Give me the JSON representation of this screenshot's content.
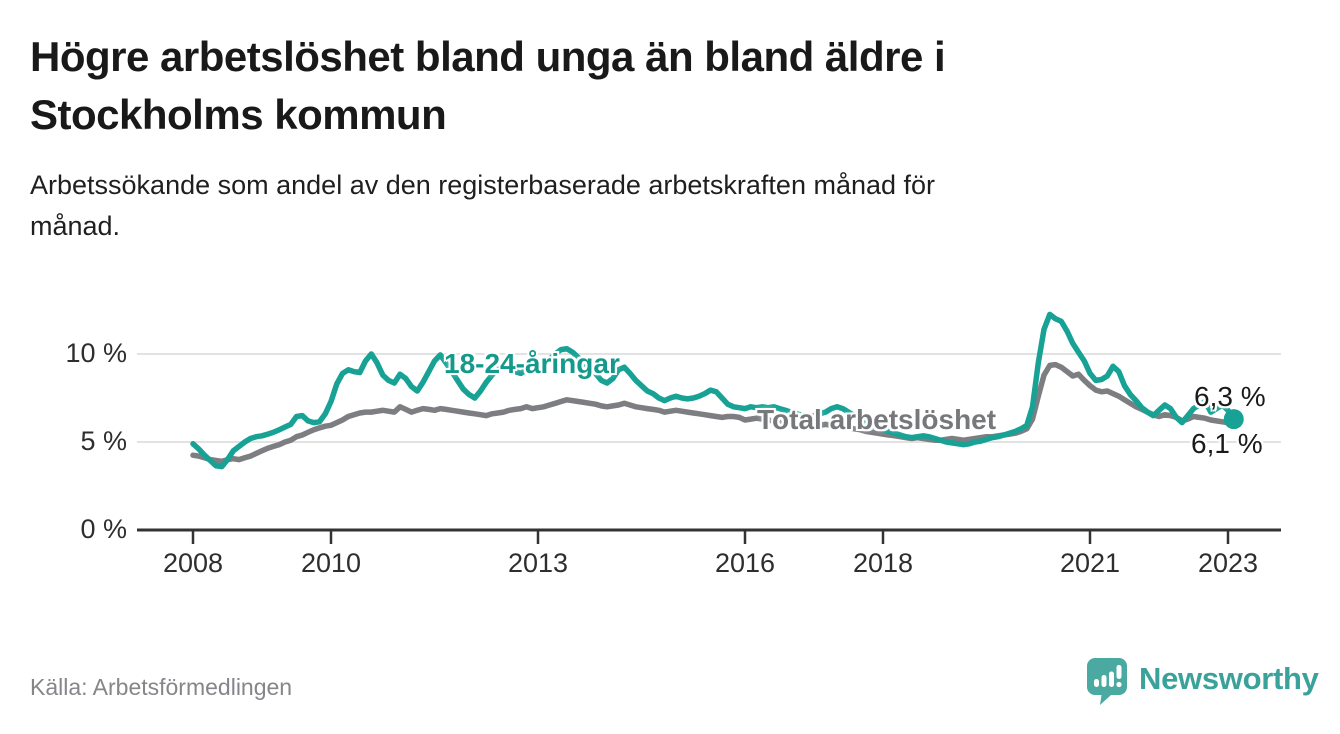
{
  "title": {
    "line1": "Högre arbetslöshet bland unga än bland äldre i",
    "line2": "Stockholms kommun"
  },
  "subtitle": {
    "line1": "Arbetssökande som andel av den registerbaserade arbetskraften månad för",
    "line2": "månad."
  },
  "source": "Källa: Arbetsförmedlingen",
  "brand": {
    "name": "Newsworthy",
    "color": "#3aa29a",
    "icon": "speech-bubble-bar-chart"
  },
  "colors": {
    "young_line": "#17a295",
    "total_line": "#7d7e82",
    "gridline": "#e2e2e2",
    "axis": "#333333",
    "text_dark": "#191919"
  },
  "chart_data": {
    "type": "line",
    "title": "Högre arbetslöshet bland unga än bland äldre i Stockholms kommun",
    "subtitle": "Arbetssökande som andel av den registerbaserade arbetskraften månad för månad.",
    "x_unit": "month",
    "x_start": "2008-01",
    "x_end": "2023-02",
    "x_tick_years": [
      2008,
      2010,
      2013,
      2016,
      2018,
      2021,
      2023
    ],
    "y_ticks": [
      {
        "value": 0,
        "label": "0 %"
      },
      {
        "value": 5,
        "label": "5 %"
      },
      {
        "value": 10,
        "label": "10 %"
      }
    ],
    "ylim": [
      0,
      13
    ],
    "grid": "horizontal",
    "legend_position": "inline-labels",
    "series": [
      {
        "name": "18-24-åringar",
        "color": "#17a295",
        "end_label": "6,3 %",
        "end_value": 6.3,
        "end_marker": "dot",
        "values": [
          4.9,
          4.6,
          4.25,
          3.95,
          3.65,
          3.6,
          4.0,
          4.5,
          4.75,
          5.0,
          5.2,
          5.3,
          5.35,
          5.45,
          5.55,
          5.7,
          5.85,
          6.0,
          6.45,
          6.5,
          6.2,
          6.1,
          6.15,
          6.6,
          7.3,
          8.3,
          8.9,
          9.1,
          9.0,
          8.95,
          9.6,
          10.0,
          9.5,
          8.8,
          8.5,
          8.35,
          8.85,
          8.6,
          8.15,
          7.9,
          8.4,
          9.0,
          9.6,
          9.95,
          9.5,
          9.0,
          8.5,
          8.0,
          7.7,
          7.5,
          7.9,
          8.4,
          8.8,
          9.2,
          9.4,
          9.3,
          9.0,
          8.9,
          9.1,
          9.3,
          9.4,
          9.5,
          9.7,
          10.0,
          10.25,
          10.3,
          10.1,
          9.8,
          9.5,
          9.2,
          8.9,
          8.5,
          8.35,
          8.6,
          9.1,
          9.25,
          8.9,
          8.5,
          8.2,
          7.9,
          7.75,
          7.5,
          7.35,
          7.5,
          7.6,
          7.5,
          7.45,
          7.5,
          7.6,
          7.75,
          7.95,
          7.85,
          7.5,
          7.15,
          7.0,
          6.95,
          6.9,
          7.0,
          6.95,
          7.0,
          6.95,
          7.0,
          6.9,
          6.8,
          6.7,
          6.6,
          6.5,
          6.45,
          6.5,
          6.6,
          6.7,
          6.9,
          7.0,
          6.9,
          6.7,
          6.5,
          6.3,
          6.1,
          5.9,
          5.8,
          5.7,
          5.6,
          5.5,
          5.4,
          5.3,
          5.25,
          5.3,
          5.35,
          5.3,
          5.2,
          5.1,
          5.0,
          4.95,
          4.9,
          4.85,
          4.9,
          5.0,
          5.05,
          5.15,
          5.25,
          5.3,
          5.4,
          5.5,
          5.6,
          5.75,
          5.95,
          7.0,
          9.5,
          11.4,
          12.25,
          12.0,
          11.85,
          11.3,
          10.6,
          10.1,
          9.6,
          8.9,
          8.5,
          8.55,
          8.75,
          9.3,
          9.0,
          8.2,
          7.7,
          7.35,
          6.95,
          6.7,
          6.5,
          6.8,
          7.1,
          6.9,
          6.4,
          6.1,
          6.5,
          6.9,
          7.1,
          7.3,
          6.7,
          6.9,
          7.1,
          6.8,
          6.3
        ]
      },
      {
        "name": "Total arbetslöshet",
        "color": "#7d7e82",
        "end_label": "6,1 %",
        "end_value": 6.1,
        "end_marker": "none",
        "values": [
          4.25,
          4.2,
          4.1,
          4.0,
          3.95,
          3.9,
          4.0,
          4.05,
          4.0,
          4.1,
          4.2,
          4.35,
          4.5,
          4.65,
          4.75,
          4.85,
          5.0,
          5.1,
          5.3,
          5.4,
          5.55,
          5.7,
          5.8,
          5.9,
          5.95,
          6.1,
          6.25,
          6.45,
          6.55,
          6.65,
          6.7,
          6.7,
          6.75,
          6.8,
          6.75,
          6.7,
          7.0,
          6.85,
          6.7,
          6.8,
          6.9,
          6.85,
          6.8,
          6.9,
          6.85,
          6.8,
          6.75,
          6.7,
          6.65,
          6.6,
          6.55,
          6.5,
          6.6,
          6.65,
          6.7,
          6.8,
          6.85,
          6.9,
          7.0,
          6.9,
          6.95,
          7.0,
          7.1,
          7.2,
          7.3,
          7.4,
          7.35,
          7.3,
          7.25,
          7.2,
          7.15,
          7.05,
          7.0,
          7.05,
          7.1,
          7.2,
          7.1,
          7.0,
          6.95,
          6.9,
          6.85,
          6.8,
          6.7,
          6.75,
          6.8,
          6.75,
          6.7,
          6.65,
          6.6,
          6.55,
          6.5,
          6.45,
          6.4,
          6.45,
          6.45,
          6.4,
          6.25,
          6.3,
          6.35,
          6.3,
          6.25,
          6.2,
          6.15,
          6.1,
          6.05,
          6.0,
          5.95,
          5.9,
          5.9,
          5.95,
          6.0,
          5.95,
          5.9,
          5.85,
          5.8,
          5.75,
          5.7,
          5.6,
          5.55,
          5.5,
          5.45,
          5.4,
          5.35,
          5.3,
          5.25,
          5.2,
          5.25,
          5.2,
          5.15,
          5.1,
          5.1,
          5.15,
          5.2,
          5.15,
          5.1,
          5.15,
          5.2,
          5.25,
          5.3,
          5.3,
          5.35,
          5.4,
          5.45,
          5.5,
          5.6,
          5.75,
          6.3,
          7.6,
          8.8,
          9.35,
          9.4,
          9.25,
          9.0,
          8.75,
          8.85,
          8.5,
          8.2,
          7.95,
          7.85,
          7.9,
          7.75,
          7.6,
          7.4,
          7.2,
          7.0,
          6.85,
          6.7,
          6.55,
          6.45,
          6.55,
          6.5,
          6.4,
          6.2,
          6.3,
          6.45,
          6.4,
          6.35,
          6.25,
          6.2,
          6.15,
          6.1,
          6.1
        ]
      }
    ]
  }
}
